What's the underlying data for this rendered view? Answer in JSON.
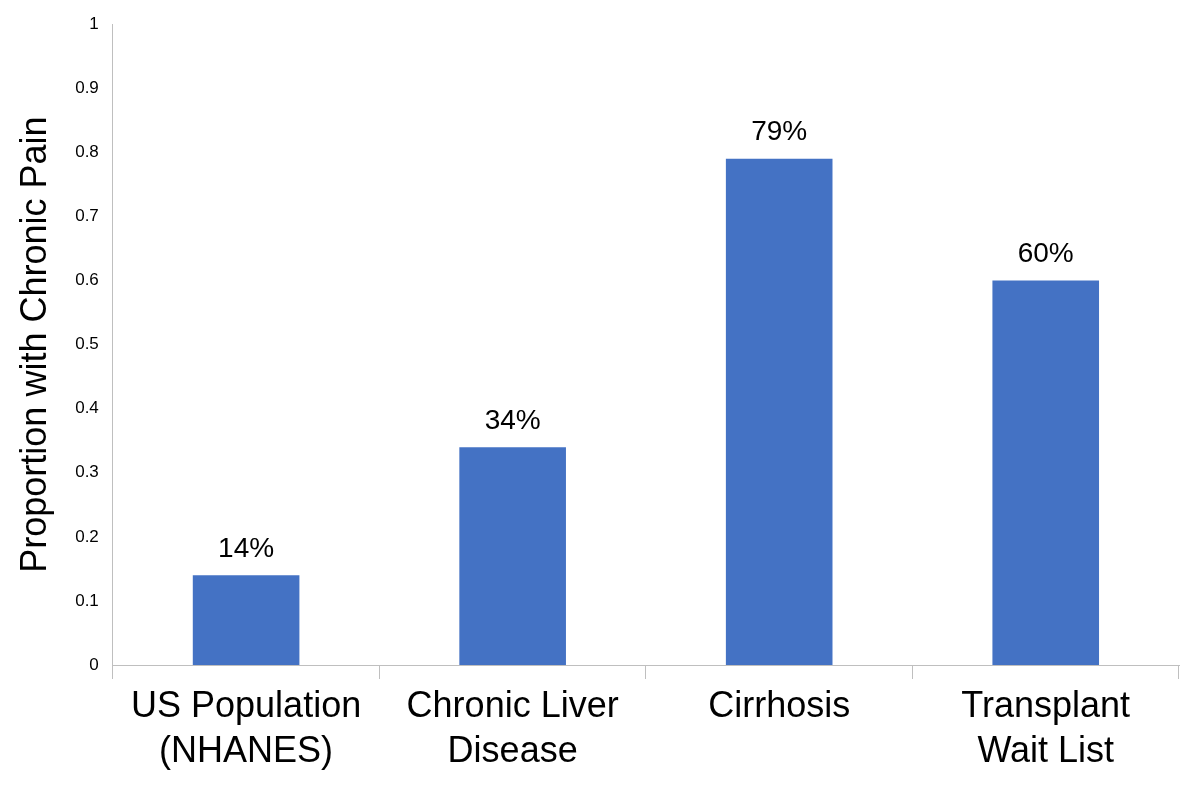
{
  "chart_data": {
    "type": "bar",
    "ylabel": "Proportion with Chronic Pain",
    "categories": [
      "US Population (NHANES)",
      "Chronic Liver Disease",
      "Cirrhosis",
      "Transplant Wait List"
    ],
    "values": [
      0.14,
      0.34,
      0.79,
      0.6
    ],
    "value_labels": [
      "14%",
      "34%",
      "79%",
      "60%"
    ],
    "color": "#4472c4",
    "ylim": [
      0,
      1
    ],
    "yticks": [
      0,
      0.1,
      0.2,
      0.3,
      0.4,
      0.5,
      0.6,
      0.7,
      0.8,
      0.9,
      1
    ],
    "grid": false,
    "legend": false
  }
}
